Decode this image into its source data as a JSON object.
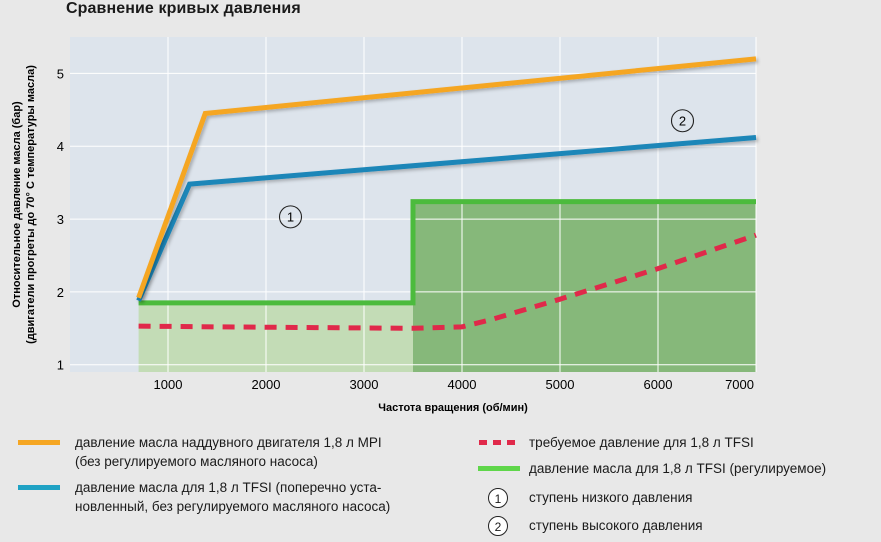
{
  "title": "Сравнение кривых давления",
  "colors": {
    "background": "#e8e8e8",
    "plot_bg": "#dde4ec",
    "orange": "#f5a623",
    "blue": "#1a86b8",
    "green": "#4cbb3d",
    "green_fill_dark": "#86b87a",
    "green_fill_light": "#c3dcb6",
    "red": "#e0294a"
  },
  "chart_data": {
    "type": "line",
    "title": "Сравнение кривых давления",
    "xlabel": "Частота вращения (об/мин)",
    "ylabel_line1": "Относительное давление масла (бар)",
    "ylabel_line2": "(двигатели прогреты до 70° С температуры масла)",
    "xlim": [
      0,
      7000
    ],
    "ylim": [
      0.9,
      5.5
    ],
    "xticks": [
      1000,
      2000,
      3000,
      4000,
      5000,
      6000,
      7000
    ],
    "yticks": [
      1,
      2,
      3,
      4,
      5
    ],
    "grid": true,
    "series": [
      {
        "key": "mpi",
        "color": "orange",
        "style": "solid",
        "x": [
          700,
          1380,
          7000
        ],
        "y": [
          1.92,
          4.45,
          5.2
        ]
      },
      {
        "key": "tfsi_transverse",
        "color": "blue",
        "style": "solid",
        "x": [
          700,
          1220,
          7000
        ],
        "y": [
          1.88,
          3.48,
          4.12
        ]
      },
      {
        "key": "tfsi_regulated",
        "color": "green",
        "style": "solid",
        "x": [
          700,
          3500,
          3500,
          7000
        ],
        "y": [
          1.85,
          1.85,
          3.24,
          3.24
        ]
      },
      {
        "key": "tfsi_required",
        "color": "red",
        "style": "dashed",
        "x": [
          700,
          1500,
          2500,
          3500,
          4000,
          4300,
          5000,
          6000,
          7000
        ],
        "y": [
          1.53,
          1.52,
          1.51,
          1.5,
          1.52,
          1.62,
          1.9,
          2.32,
          2.78
        ]
      }
    ],
    "stages": [
      {
        "marker": "1",
        "x": 2250,
        "y": 3.03
      },
      {
        "marker": "2",
        "x": 6250,
        "y": 4.35
      }
    ]
  },
  "legend": {
    "mpi_line1": "давление масла наддувного двигателя 1,8 л MPI",
    "mpi_line2": "(без регулируемого масляного насоса)",
    "transverse_line1": "давление масла для 1,8 л TFSI (поперечно уста-",
    "transverse_line2": "новленный, без регулируемого масляного насоса)",
    "required": "требуемое давление для 1,8 л TFSI",
    "regulated": "давление масла для 1,8 л TFSI (регулируемое)",
    "stage1_num": "1",
    "stage1": "ступень низкого давления",
    "stage2_num": "2",
    "stage2": "ступень высокого давления"
  }
}
